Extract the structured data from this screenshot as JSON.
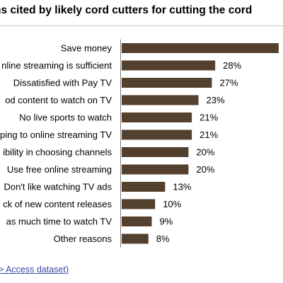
{
  "chart_data": {
    "type": "bar",
    "orientation": "horizontal",
    "title": "ns cited by likely cord cutters for cutting the cord",
    "categories": [
      "Save money",
      "nline streaming is sufficient",
      "Dissatisfied with Pay TV",
      "od content to watch on TV",
      "No live sports to watch",
      "ping to online streaming TV",
      "ibility in choosing channels",
      "Use free online streaming",
      "Don't like watching TV ads",
      "ck of new content releases",
      "as much time to watch TV",
      "Other reasons"
    ],
    "values": [
      47,
      28,
      27,
      23,
      21,
      21,
      20,
      20,
      13,
      10,
      9,
      8
    ],
    "data_labels": [
      "",
      "28%",
      "27%",
      "23%",
      "21%",
      "21%",
      "20%",
      "20%",
      "13%",
      "10%",
      "9%",
      "8%"
    ],
    "unit": "%",
    "bar_color": "#54402f",
    "grid": false,
    "legend": "none"
  },
  "source": {
    "link_text": "> Access dataset)"
  }
}
